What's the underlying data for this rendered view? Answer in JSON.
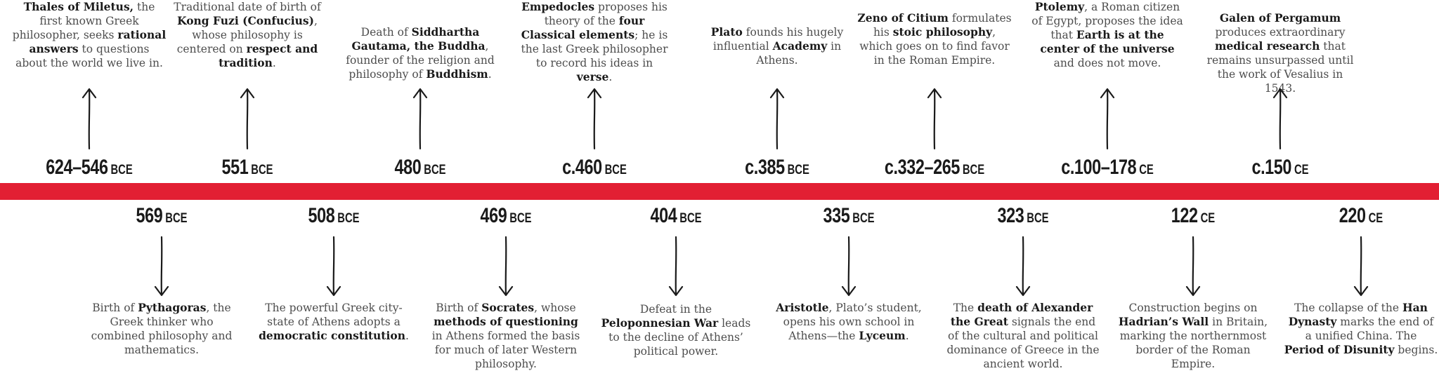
{
  "colors": {
    "bar": "#e21f33",
    "text": "#4d4d4d",
    "bold": "#1a1a1a"
  },
  "events_above": [
    {
      "year": "624–546",
      "era": "BCE",
      "desc": [
        [
          "b",
          "Thales of Miletus,"
        ],
        [
          "t",
          " the first known Greek philosopher, seeks "
        ],
        [
          "b",
          "rational answers"
        ],
        [
          "t",
          " to questions about the world we live in."
        ]
      ]
    },
    {
      "year": "551",
      "era": "BCE",
      "desc": [
        [
          "t",
          "Traditional date of birth of "
        ],
        [
          "b",
          "Kong Fuzi (Confucius)"
        ],
        [
          "t",
          ", whose philosophy is centered on "
        ],
        [
          "b",
          "respect and tradition"
        ],
        [
          "t",
          "."
        ]
      ]
    },
    {
      "year": "480",
      "era": "BCE",
      "desc": [
        [
          "t",
          "Death of "
        ],
        [
          "b",
          "Siddhartha Gautama, the Buddha"
        ],
        [
          "t",
          ", founder of the religion and philosophy of "
        ],
        [
          "b",
          "Buddhism"
        ],
        [
          "t",
          "."
        ]
      ]
    },
    {
      "year": "c.460",
      "era": "BCE",
      "desc": [
        [
          "b",
          "Empedocles"
        ],
        [
          "t",
          " proposes his theory of the "
        ],
        [
          "b",
          "four Classical elements"
        ],
        [
          "t",
          "; he is the last Greek philosopher to record his ideas in "
        ],
        [
          "b",
          "verse"
        ],
        [
          "t",
          "."
        ]
      ]
    },
    {
      "year": "c.385",
      "era": "BCE",
      "desc": [
        [
          "b",
          "Plato"
        ],
        [
          "t",
          " founds his hugely influential "
        ],
        [
          "b",
          "Academy"
        ],
        [
          "t",
          " in Athens."
        ]
      ]
    },
    {
      "year": "c.332–265",
      "era": "BCE",
      "desc": [
        [
          "b",
          "Zeno of Citium"
        ],
        [
          "t",
          " formulates his "
        ],
        [
          "b",
          "stoic philosophy"
        ],
        [
          "t",
          ", which goes on to find favor in the Roman Empire."
        ]
      ]
    },
    {
      "year": "c.100–178",
      "era": "CE",
      "desc": [
        [
          "b",
          "Ptolemy"
        ],
        [
          "t",
          ", a Roman citizen of Egypt, proposes the idea that "
        ],
        [
          "b",
          "Earth is at the center of the universe"
        ],
        [
          "t",
          " and does not move."
        ]
      ]
    },
    {
      "year": "c.150",
      "era": "CE",
      "desc": [
        [
          "b",
          "Galen of Pergamum"
        ],
        [
          "t",
          " produces extraordinary "
        ],
        [
          "b",
          "medical research"
        ],
        [
          "t",
          " that remains unsurpassed until the work of Vesalius in 1543."
        ]
      ]
    }
  ],
  "events_below": [
    {
      "year": "569",
      "era": "BCE",
      "desc": [
        [
          "t",
          "Birth of "
        ],
        [
          "b",
          "Pythagoras"
        ],
        [
          "t",
          ", the Greek thinker who combined philosophy and mathematics."
        ]
      ]
    },
    {
      "year": "508",
      "era": "BCE",
      "desc": [
        [
          "t",
          "The powerful Greek city-state of Athens adopts a "
        ],
        [
          "b",
          "democratic constitution"
        ],
        [
          "t",
          "."
        ]
      ]
    },
    {
      "year": "469",
      "era": "BCE",
      "desc": [
        [
          "t",
          "Birth of "
        ],
        [
          "b",
          "Socrates"
        ],
        [
          "t",
          ", whose "
        ],
        [
          "b",
          "methods of questioning"
        ],
        [
          "t",
          " in Athens formed the basis for much of later Western philosophy."
        ]
      ]
    },
    {
      "year": "404",
      "era": "BCE",
      "desc": [
        [
          "t",
          "Defeat in the "
        ],
        [
          "b",
          "Peloponnesian War"
        ],
        [
          "t",
          " leads to the decline of Athens’ political power."
        ]
      ]
    },
    {
      "year": "335",
      "era": "BCE",
      "desc": [
        [
          "b",
          "Aristotle"
        ],
        [
          "t",
          ", Plato’s student, opens his own school in Athens—the "
        ],
        [
          "b",
          "Lyceum"
        ],
        [
          "t",
          "."
        ]
      ]
    },
    {
      "year": "323",
      "era": "BCE",
      "desc": [
        [
          "t",
          "The "
        ],
        [
          "b",
          "death of Alexander the Great"
        ],
        [
          "t",
          " signals the end of the cultural and political dominance of Greece in the ancient world."
        ]
      ]
    },
    {
      "year": "122",
      "era": "CE",
      "desc": [
        [
          "t",
          "Construction begins on "
        ],
        [
          "b",
          "Hadrian’s Wall"
        ],
        [
          "t",
          " in Britain, marking the northernmost border of the Roman Empire."
        ]
      ]
    },
    {
      "year": "220",
      "era": "CE",
      "desc": [
        [
          "t",
          "The collapse of the "
        ],
        [
          "b",
          "Han Dynasty"
        ],
        [
          "t",
          " marks the end of a unified China. The "
        ],
        [
          "b",
          "Period of Disunity"
        ],
        [
          "t",
          " begins."
        ]
      ]
    }
  ]
}
